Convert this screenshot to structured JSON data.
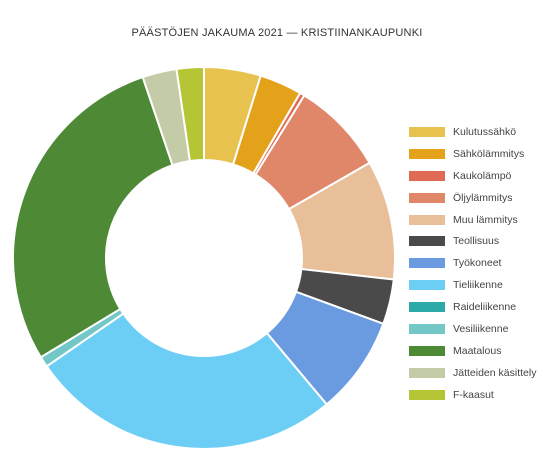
{
  "chart_data": {
    "type": "pie",
    "donut": true,
    "title": "PÄÄSTÖJEN JAKAUMA 2021 — KRISTIINANKAUPUNKI",
    "legend_position": "right",
    "slices": [
      {
        "label": "Kulutussähkö",
        "value": 4.8,
        "color": "#E8C24F"
      },
      {
        "label": "Sähkölämmitys",
        "value": 3.6,
        "color": "#E3A21A"
      },
      {
        "label": "Kaukolämpö",
        "value": 0.4,
        "color": "#E06B55"
      },
      {
        "label": "Öljylämmitys",
        "value": 7.9,
        "color": "#E0876A"
      },
      {
        "label": "Muu lämmitys",
        "value": 10.1,
        "color": "#E8BF98"
      },
      {
        "label": "Teollisuus",
        "value": 3.8,
        "color": "#4A4A4A"
      },
      {
        "label": "Työkoneet",
        "value": 8.3,
        "color": "#6A9AE0"
      },
      {
        "label": "Tieliikenne",
        "value": 26.5,
        "color": "#6DCEF5"
      },
      {
        "label": "Raideliikenne",
        "value": 0.0,
        "color": "#2BAAA8"
      },
      {
        "label": "Vesiliikenne",
        "value": 0.9,
        "color": "#73C7C7"
      },
      {
        "label": "Maatalous",
        "value": 28.5,
        "color": "#4E8A35"
      },
      {
        "label": "Jätteiden käsittely",
        "value": 2.9,
        "color": "#C4CCA7"
      },
      {
        "label": "F-kaasut",
        "value": 2.3,
        "color": "#B5C535"
      }
    ]
  }
}
